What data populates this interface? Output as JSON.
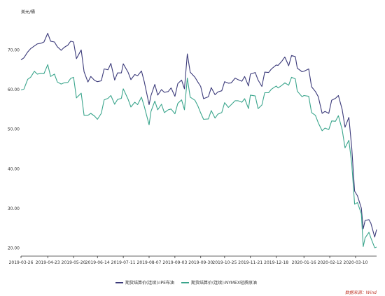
{
  "chart_data": {
    "type": "line",
    "unit_label": "美元/桶",
    "ylim": [
      18,
      78
    ],
    "y_ticks": [
      20.0,
      30.0,
      40.0,
      50.0,
      60.0,
      70.0
    ],
    "y_tick_labels": [
      "20.00",
      "30.00",
      "40.00",
      "50.00",
      "60.00",
      "70.00"
    ],
    "x_ticks": [
      "2019-03-26",
      "2019-04-23",
      "2019-05-20",
      "2019-06-14",
      "2019-07-11",
      "2019-08-07",
      "2019-09-03",
      "2019-09-30",
      "2019-10-25",
      "2019-11-21",
      "2019-12-18",
      "2020-01-16",
      "2020-02-12",
      "2020-03-10"
    ],
    "xlim": [
      "2019-03-26",
      "2020-04-01"
    ],
    "grid": false,
    "legend_position": "bottom",
    "source": "数据来源：Wind",
    "series": [
      {
        "name": "期货结算价(连续):IPE布油",
        "color": "#3b3a7a",
        "points": [
          [
            "2019-03-26",
            67.5
          ],
          [
            "2019-03-29",
            68.0
          ],
          [
            "2019-04-02",
            69.5
          ],
          [
            "2019-04-05",
            70.3
          ],
          [
            "2019-04-09",
            71.0
          ],
          [
            "2019-04-12",
            71.5
          ],
          [
            "2019-04-16",
            71.7
          ],
          [
            "2019-04-19",
            72.0
          ],
          [
            "2019-04-23",
            74.2
          ],
          [
            "2019-04-26",
            72.2
          ],
          [
            "2019-04-30",
            72.0
          ],
          [
            "2019-05-03",
            70.8
          ],
          [
            "2019-05-07",
            69.9
          ],
          [
            "2019-05-10",
            70.6
          ],
          [
            "2019-05-14",
            71.2
          ],
          [
            "2019-05-17",
            72.2
          ],
          [
            "2019-05-20",
            72.0
          ],
          [
            "2019-05-23",
            67.8
          ],
          [
            "2019-05-28",
            70.0
          ],
          [
            "2019-05-31",
            64.5
          ],
          [
            "2019-06-04",
            61.9
          ],
          [
            "2019-06-07",
            63.3
          ],
          [
            "2019-06-11",
            62.3
          ],
          [
            "2019-06-14",
            62.0
          ],
          [
            "2019-06-18",
            62.2
          ],
          [
            "2019-06-21",
            65.2
          ],
          [
            "2019-06-25",
            65.0
          ],
          [
            "2019-06-28",
            66.6
          ],
          [
            "2019-07-02",
            62.4
          ],
          [
            "2019-07-05",
            64.2
          ],
          [
            "2019-07-09",
            64.2
          ],
          [
            "2019-07-11",
            66.5
          ],
          [
            "2019-07-16",
            64.4
          ],
          [
            "2019-07-19",
            62.5
          ],
          [
            "2019-07-23",
            63.8
          ],
          [
            "2019-07-26",
            63.5
          ],
          [
            "2019-07-30",
            64.7
          ],
          [
            "2019-08-02",
            61.9
          ],
          [
            "2019-08-07",
            56.2
          ],
          [
            "2019-08-09",
            58.5
          ],
          [
            "2019-08-13",
            61.3
          ],
          [
            "2019-08-16",
            58.6
          ],
          [
            "2019-08-20",
            60.0
          ],
          [
            "2019-08-23",
            59.3
          ],
          [
            "2019-08-27",
            59.5
          ],
          [
            "2019-08-30",
            60.4
          ],
          [
            "2019-09-03",
            58.3
          ],
          [
            "2019-09-06",
            61.5
          ],
          [
            "2019-09-10",
            62.4
          ],
          [
            "2019-09-13",
            60.2
          ],
          [
            "2019-09-16",
            69.0
          ],
          [
            "2019-09-19",
            64.4
          ],
          [
            "2019-09-24",
            63.1
          ],
          [
            "2019-09-27",
            61.9
          ],
          [
            "2019-09-30",
            60.8
          ],
          [
            "2019-10-03",
            57.7
          ],
          [
            "2019-10-08",
            58.2
          ],
          [
            "2019-10-11",
            60.5
          ],
          [
            "2019-10-15",
            58.7
          ],
          [
            "2019-10-18",
            59.4
          ],
          [
            "2019-10-22",
            59.7
          ],
          [
            "2019-10-25",
            62.0
          ],
          [
            "2019-10-29",
            61.6
          ],
          [
            "2019-11-01",
            61.7
          ],
          [
            "2019-11-05",
            62.9
          ],
          [
            "2019-11-08",
            62.5
          ],
          [
            "2019-11-12",
            62.1
          ],
          [
            "2019-11-15",
            63.3
          ],
          [
            "2019-11-19",
            60.9
          ],
          [
            "2019-11-21",
            63.9
          ],
          [
            "2019-11-26",
            64.3
          ],
          [
            "2019-11-29",
            62.4
          ],
          [
            "2019-12-03",
            60.8
          ],
          [
            "2019-12-06",
            64.4
          ],
          [
            "2019-12-10",
            64.3
          ],
          [
            "2019-12-13",
            65.2
          ],
          [
            "2019-12-18",
            66.2
          ],
          [
            "2019-12-20",
            66.1
          ],
          [
            "2019-12-24",
            67.2
          ],
          [
            "2019-12-27",
            68.2
          ],
          [
            "2019-12-31",
            66.0
          ],
          [
            "2020-01-03",
            68.6
          ],
          [
            "2020-01-07",
            68.3
          ],
          [
            "2020-01-09",
            65.4
          ],
          [
            "2020-01-14",
            64.5
          ],
          [
            "2020-01-16",
            64.6
          ],
          [
            "2020-01-21",
            65.2
          ],
          [
            "2020-01-24",
            60.7
          ],
          [
            "2020-01-28",
            59.5
          ],
          [
            "2020-01-31",
            58.2
          ],
          [
            "2020-02-04",
            54.0
          ],
          [
            "2020-02-07",
            54.5
          ],
          [
            "2020-02-11",
            54.0
          ],
          [
            "2020-02-14",
            57.3
          ],
          [
            "2020-02-18",
            57.8
          ],
          [
            "2020-02-21",
            58.5
          ],
          [
            "2020-02-25",
            55.0
          ],
          [
            "2020-02-28",
            50.5
          ],
          [
            "2020-03-03",
            53.0
          ],
          [
            "2020-03-06",
            45.3
          ],
          [
            "2020-03-09",
            34.4
          ],
          [
            "2020-03-12",
            33.2
          ],
          [
            "2020-03-16",
            30.1
          ],
          [
            "2020-03-18",
            24.9
          ],
          [
            "2020-03-20",
            27.0
          ],
          [
            "2020-03-24",
            27.2
          ],
          [
            "2020-03-26",
            26.3
          ],
          [
            "2020-03-30",
            22.8
          ],
          [
            "2020-04-01",
            24.7
          ]
        ]
      },
      {
        "name": "期货结算价(连续):NYMEX轻质原油",
        "color": "#3aa58c",
        "points": [
          [
            "2019-03-26",
            59.9
          ],
          [
            "2019-03-29",
            60.1
          ],
          [
            "2019-04-02",
            62.6
          ],
          [
            "2019-04-05",
            63.1
          ],
          [
            "2019-04-09",
            64.6
          ],
          [
            "2019-04-12",
            63.9
          ],
          [
            "2019-04-16",
            64.1
          ],
          [
            "2019-04-19",
            64.0
          ],
          [
            "2019-04-23",
            66.3
          ],
          [
            "2019-04-26",
            63.3
          ],
          [
            "2019-04-30",
            63.9
          ],
          [
            "2019-05-03",
            61.9
          ],
          [
            "2019-05-07",
            61.4
          ],
          [
            "2019-05-10",
            61.7
          ],
          [
            "2019-05-14",
            61.8
          ],
          [
            "2019-05-17",
            62.8
          ],
          [
            "2019-05-20",
            63.1
          ],
          [
            "2019-05-23",
            57.9
          ],
          [
            "2019-05-28",
            59.1
          ],
          [
            "2019-05-31",
            53.5
          ],
          [
            "2019-06-04",
            53.5
          ],
          [
            "2019-06-07",
            54.0
          ],
          [
            "2019-06-11",
            53.3
          ],
          [
            "2019-06-14",
            52.5
          ],
          [
            "2019-06-18",
            54.0
          ],
          [
            "2019-06-21",
            57.4
          ],
          [
            "2019-06-25",
            57.8
          ],
          [
            "2019-06-28",
            58.5
          ],
          [
            "2019-07-02",
            56.3
          ],
          [
            "2019-07-05",
            57.5
          ],
          [
            "2019-07-09",
            57.8
          ],
          [
            "2019-07-11",
            60.2
          ],
          [
            "2019-07-16",
            57.6
          ],
          [
            "2019-07-19",
            55.6
          ],
          [
            "2019-07-23",
            56.8
          ],
          [
            "2019-07-26",
            56.2
          ],
          [
            "2019-07-30",
            58.1
          ],
          [
            "2019-08-02",
            55.7
          ],
          [
            "2019-08-07",
            51.1
          ],
          [
            "2019-08-09",
            54.5
          ],
          [
            "2019-08-13",
            57.1
          ],
          [
            "2019-08-16",
            54.9
          ],
          [
            "2019-08-20",
            56.3
          ],
          [
            "2019-08-23",
            54.2
          ],
          [
            "2019-08-27",
            54.9
          ],
          [
            "2019-08-30",
            55.1
          ],
          [
            "2019-09-03",
            53.9
          ],
          [
            "2019-09-06",
            56.5
          ],
          [
            "2019-09-10",
            57.4
          ],
          [
            "2019-09-13",
            54.9
          ],
          [
            "2019-09-16",
            62.9
          ],
          [
            "2019-09-19",
            58.1
          ],
          [
            "2019-09-24",
            57.3
          ],
          [
            "2019-09-27",
            55.9
          ],
          [
            "2019-09-30",
            54.1
          ],
          [
            "2019-10-03",
            52.5
          ],
          [
            "2019-10-08",
            52.6
          ],
          [
            "2019-10-11",
            54.7
          ],
          [
            "2019-10-15",
            52.8
          ],
          [
            "2019-10-18",
            53.8
          ],
          [
            "2019-10-22",
            54.2
          ],
          [
            "2019-10-25",
            56.7
          ],
          [
            "2019-10-29",
            55.5
          ],
          [
            "2019-11-01",
            56.2
          ],
          [
            "2019-11-05",
            57.2
          ],
          [
            "2019-11-08",
            57.2
          ],
          [
            "2019-11-12",
            56.8
          ],
          [
            "2019-11-15",
            57.7
          ],
          [
            "2019-11-19",
            55.2
          ],
          [
            "2019-11-21",
            58.6
          ],
          [
            "2019-11-26",
            58.4
          ],
          [
            "2019-11-29",
            55.2
          ],
          [
            "2019-12-03",
            56.1
          ],
          [
            "2019-12-06",
            59.2
          ],
          [
            "2019-12-10",
            59.2
          ],
          [
            "2019-12-13",
            60.1
          ],
          [
            "2019-12-18",
            60.9
          ],
          [
            "2019-12-20",
            60.4
          ],
          [
            "2019-12-24",
            61.1
          ],
          [
            "2019-12-27",
            61.7
          ],
          [
            "2019-12-31",
            61.1
          ],
          [
            "2020-01-03",
            63.1
          ],
          [
            "2020-01-07",
            62.7
          ],
          [
            "2020-01-09",
            59.6
          ],
          [
            "2020-01-14",
            58.2
          ],
          [
            "2020-01-16",
            58.5
          ],
          [
            "2020-01-21",
            58.3
          ],
          [
            "2020-01-24",
            54.2
          ],
          [
            "2020-01-28",
            53.5
          ],
          [
            "2020-01-31",
            51.6
          ],
          [
            "2020-02-04",
            49.6
          ],
          [
            "2020-02-07",
            50.3
          ],
          [
            "2020-02-11",
            49.9
          ],
          [
            "2020-02-14",
            52.1
          ],
          [
            "2020-02-18",
            52.0
          ],
          [
            "2020-02-21",
            53.4
          ],
          [
            "2020-02-25",
            49.9
          ],
          [
            "2020-02-28",
            45.3
          ],
          [
            "2020-03-03",
            47.2
          ],
          [
            "2020-03-06",
            41.3
          ],
          [
            "2020-03-09",
            31.1
          ],
          [
            "2020-03-12",
            31.5
          ],
          [
            "2020-03-16",
            28.7
          ],
          [
            "2020-03-18",
            20.4
          ],
          [
            "2020-03-20",
            22.6
          ],
          [
            "2020-03-24",
            24.0
          ],
          [
            "2020-03-26",
            22.6
          ],
          [
            "2020-03-30",
            20.1
          ],
          [
            "2020-04-01",
            20.3
          ]
        ]
      }
    ]
  }
}
